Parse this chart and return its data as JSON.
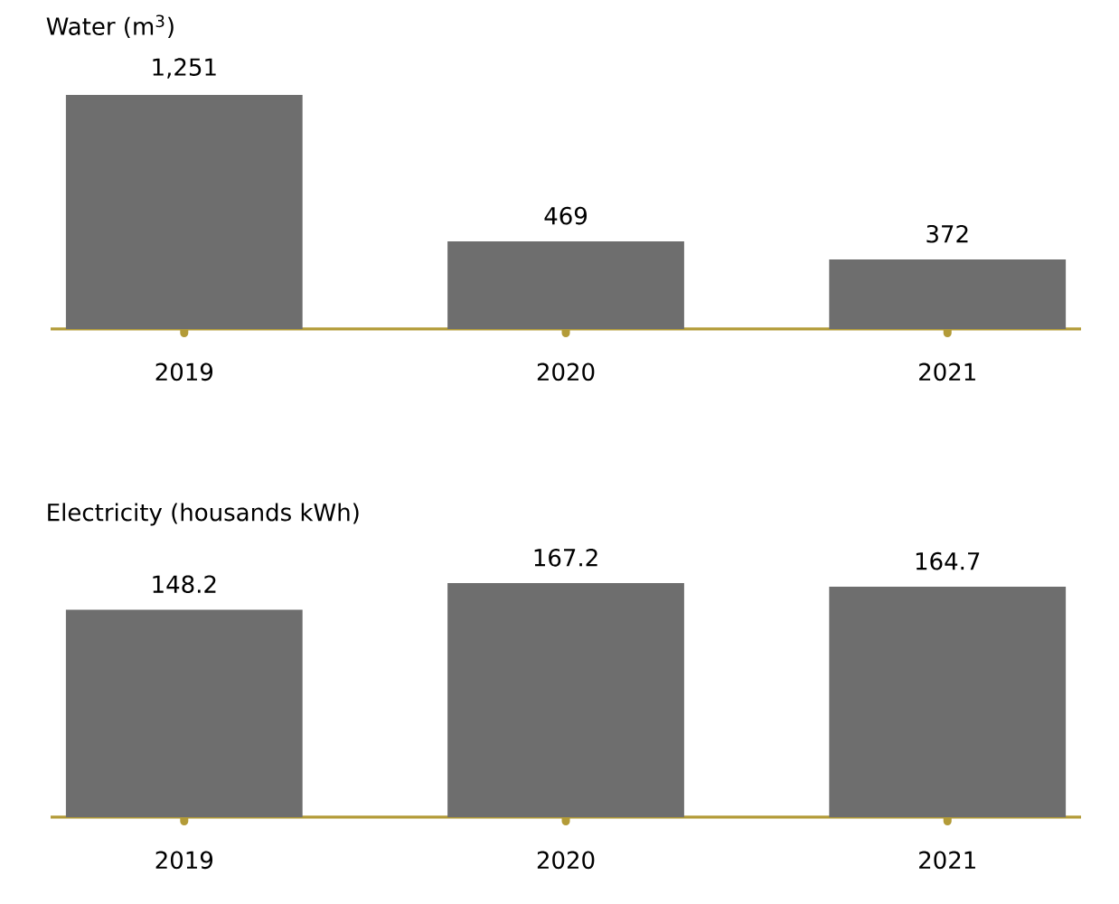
{
  "chart_data": [
    {
      "type": "bar",
      "title": "Water (m$^{3}$)",
      "categories": [
        "2019",
        "2020",
        "2021"
      ],
      "values": [
        1251,
        469,
        372
      ],
      "value_labels": [
        "1,251",
        "469",
        "372"
      ],
      "color": "#6e6e6e"
    },
    {
      "type": "bar",
      "title": "Electricity (housands kWh)",
      "categories": [
        "2019",
        "2020",
        "2021"
      ],
      "values": [
        148.2,
        167.2,
        164.7
      ],
      "value_labels": [
        "148.2",
        "167.2",
        "164.7"
      ],
      "color": "#6e6e6e"
    }
  ]
}
